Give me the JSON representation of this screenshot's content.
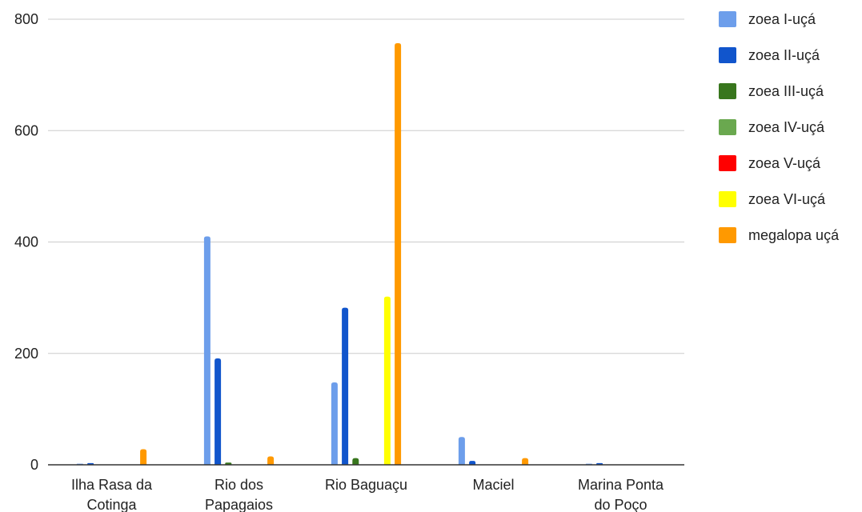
{
  "chart_data": {
    "type": "bar",
    "title": "",
    "xlabel": "",
    "ylabel": "",
    "ylim": [
      0,
      800
    ],
    "y_ticks": [
      "0",
      "200",
      "400",
      "600",
      "800"
    ],
    "grid": true,
    "legend_position": "right",
    "categories": [
      [
        "Ilha Rasa da",
        "Cotinga"
      ],
      [
        "Rio dos",
        "Papagaios"
      ],
      [
        "Rio Baguaçu"
      ],
      [
        "Maciel"
      ],
      [
        "Marina Ponta",
        "do Poço"
      ]
    ],
    "series": [
      {
        "name": "zoea I-uçá",
        "color": "#6d9eeb",
        "values": [
          2,
          410,
          148,
          50,
          2
        ]
      },
      {
        "name": "zoea II-uçá",
        "color": "#1155cc",
        "values": [
          3,
          191,
          282,
          7,
          3
        ]
      },
      {
        "name": "zoea III-uçá",
        "color": "#38761d",
        "values": [
          0,
          4,
          12,
          0,
          0
        ]
      },
      {
        "name": "zoea IV-uçá",
        "color": "#6aa84f",
        "values": [
          0,
          0,
          0,
          0,
          0
        ]
      },
      {
        "name": "zoea V-uçá",
        "color": "#ff0000",
        "values": [
          0,
          0,
          0,
          0,
          0
        ]
      },
      {
        "name": "zoea VI-uçá",
        "color": "#ffff00",
        "values": [
          0,
          0,
          302,
          0,
          0
        ]
      },
      {
        "name": "megalopa uçá",
        "color": "#ff9900",
        "values": [
          28,
          15,
          757,
          12,
          0
        ]
      }
    ]
  }
}
